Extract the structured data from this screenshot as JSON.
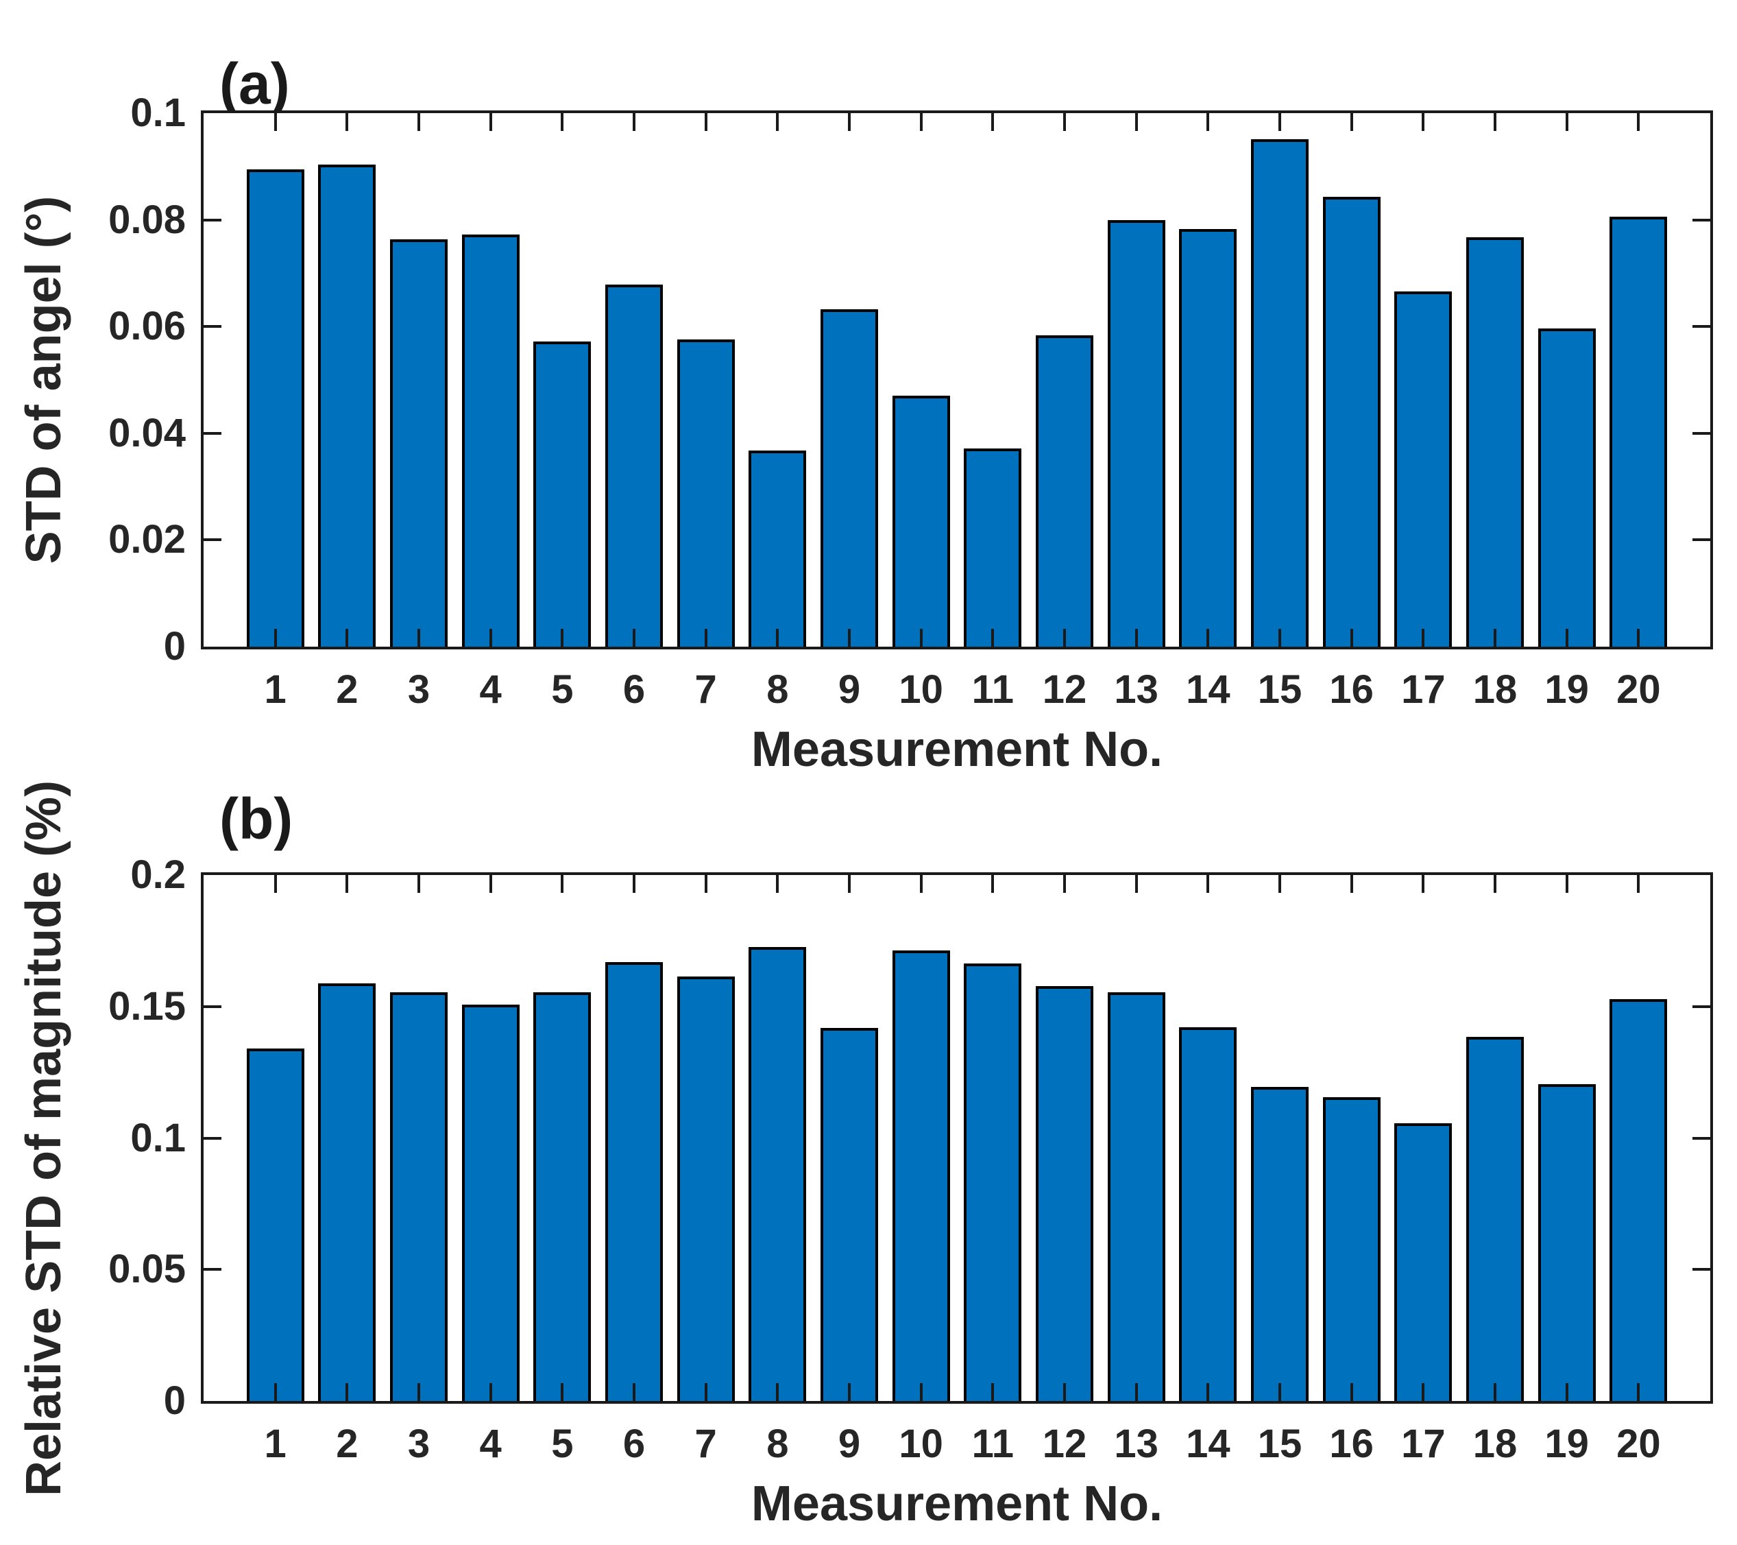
{
  "figure": {
    "background": "#ffffff",
    "panels": [
      "(a)",
      "(b)"
    ]
  },
  "chart_data": [
    {
      "type": "bar",
      "panel_label": "(a)",
      "xlabel": "Measurement No.",
      "ylabel": "STD of angel (°)",
      "categories": [
        "1",
        "2",
        "3",
        "4",
        "5",
        "6",
        "7",
        "8",
        "9",
        "10",
        "11",
        "12",
        "13",
        "14",
        "15",
        "16",
        "17",
        "18",
        "19",
        "20"
      ],
      "values": [
        0.0895,
        0.0903,
        0.0763,
        0.0773,
        0.0572,
        0.0679,
        0.0576,
        0.0368,
        0.0633,
        0.047,
        0.0371,
        0.0584,
        0.08,
        0.0783,
        0.0951,
        0.0843,
        0.0666,
        0.0768,
        0.0597,
        0.0806
      ],
      "ylim": [
        0,
        0.1
      ],
      "ytick_values": [
        0,
        0.02,
        0.04,
        0.06,
        0.08,
        0.1
      ],
      "ytick_labels": [
        "0",
        "0.02",
        "0.04",
        "0.06",
        "0.08",
        "0.1"
      ],
      "grid": false,
      "legend": "none",
      "bar_color": "#0072BD",
      "bar_edge_color": "#000000"
    },
    {
      "type": "bar",
      "panel_label": "(b)",
      "xlabel": "Measurement No.",
      "ylabel": "Relative STD of magnitude (%)",
      "categories": [
        "1",
        "2",
        "3",
        "4",
        "5",
        "6",
        "7",
        "8",
        "9",
        "10",
        "11",
        "12",
        "13",
        "14",
        "15",
        "16",
        "17",
        "18",
        "19",
        "20"
      ],
      "values": [
        0.134,
        0.1588,
        0.1555,
        0.1508,
        0.1555,
        0.1668,
        0.1615,
        0.1725,
        0.1418,
        0.1712,
        0.1663,
        0.1577,
        0.1555,
        0.1422,
        0.1195,
        0.1155,
        0.1055,
        0.1385,
        0.1205,
        0.1528
      ],
      "ylim": [
        0,
        0.2
      ],
      "ytick_values": [
        0,
        0.05,
        0.1,
        0.15,
        0.2
      ],
      "ytick_labels": [
        "0",
        "0.05",
        "0.1",
        "0.15",
        "0.2"
      ],
      "grid": false,
      "legend": "none",
      "bar_color": "#0072BD",
      "bar_edge_color": "#000000"
    }
  ]
}
